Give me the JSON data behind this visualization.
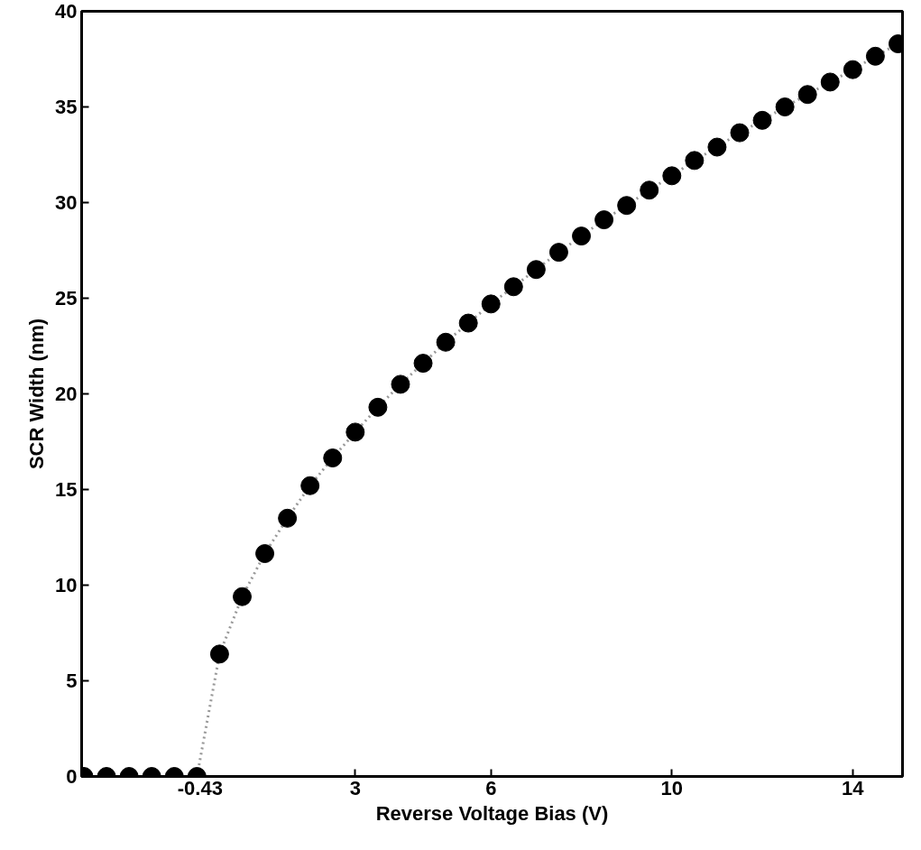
{
  "chart_data": {
    "type": "line",
    "xlabel": "Reverse Voltage Bias (V)",
    "ylabel": "SCR Width (nm)",
    "xlim": [
      -3.05,
      15.1
    ],
    "xticks": [
      -0.43,
      3,
      6,
      10,
      14
    ],
    "ylim": [
      0,
      40
    ],
    "yticks": [
      0,
      5,
      10,
      15,
      20,
      25,
      30,
      35,
      40
    ],
    "grid": false,
    "marker": "circle",
    "line_style": "dotted",
    "series": [
      {
        "color": "#000000",
        "x": [
          -3,
          -2.5,
          -2,
          -1.5,
          -1,
          -0.5,
          0,
          0.5,
          1,
          1.5,
          2,
          2.5,
          3,
          3.5,
          4,
          4.5,
          5,
          5.5,
          6,
          6.5,
          7,
          7.5,
          8,
          8.5,
          9,
          9.5,
          10,
          10.5,
          11,
          11.5,
          12,
          12.5,
          13,
          13.5,
          14,
          14.5,
          15
        ],
        "values": [
          0,
          0,
          0,
          0,
          0,
          0,
          6.4,
          9.4,
          11.65,
          13.5,
          15.2,
          16.65,
          18.0,
          19.3,
          20.5,
          21.6,
          22.7,
          23.7,
          24.7,
          25.6,
          26.5,
          27.4,
          28.25,
          29.1,
          29.85,
          30.65,
          31.4,
          32.2,
          32.9,
          33.65,
          34.3,
          35.0,
          35.65,
          36.3,
          36.95,
          37.65,
          38.3
        ]
      }
    ]
  }
}
